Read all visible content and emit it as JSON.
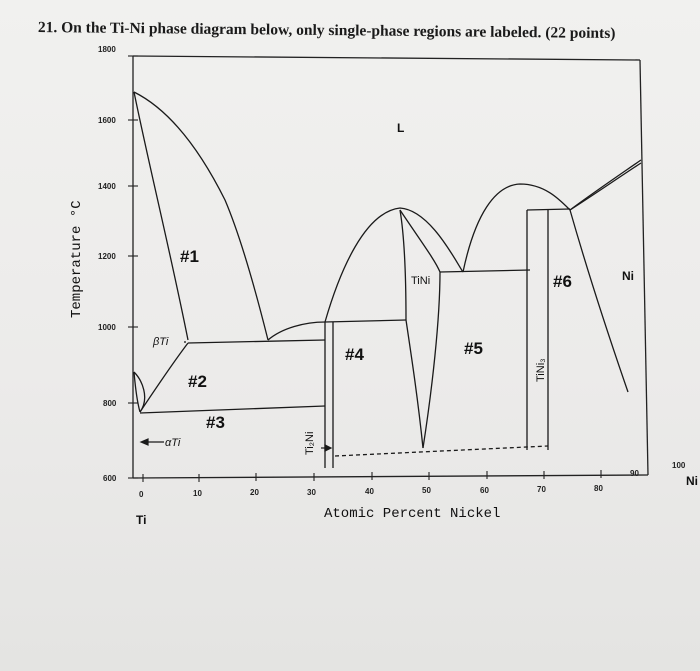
{
  "question": "21. On the Ti-Ni phase diagram below, only single-phase regions are labeled. (22 points)",
  "y_axis": {
    "title": "Temperature °C",
    "ticks": [
      "1800",
      "1600",
      "1400",
      "1200",
      "1000",
      "800",
      "600"
    ]
  },
  "x_axis": {
    "title": "Atomic Percent Nickel",
    "ticks": [
      "0",
      "10",
      "20",
      "30",
      "40",
      "50",
      "60",
      "70",
      "80",
      "90",
      "100"
    ],
    "left_element": "Ti",
    "right_element": "Ni"
  },
  "phases": {
    "liquid": "L",
    "beta_ti": "βTi",
    "alpha_ti": "αTi",
    "tini": "TiNi",
    "ti2ni": "Ti₂Ni",
    "tini3": "TiNi₃",
    "ni": "Ni"
  },
  "regions": {
    "r1": "#1",
    "r2": "#2",
    "r3": "#3",
    "r4": "#4",
    "r5": "#5",
    "r6": "#6"
  },
  "colors": {
    "ink": "#1a1a1a",
    "paper": "#efefed"
  }
}
